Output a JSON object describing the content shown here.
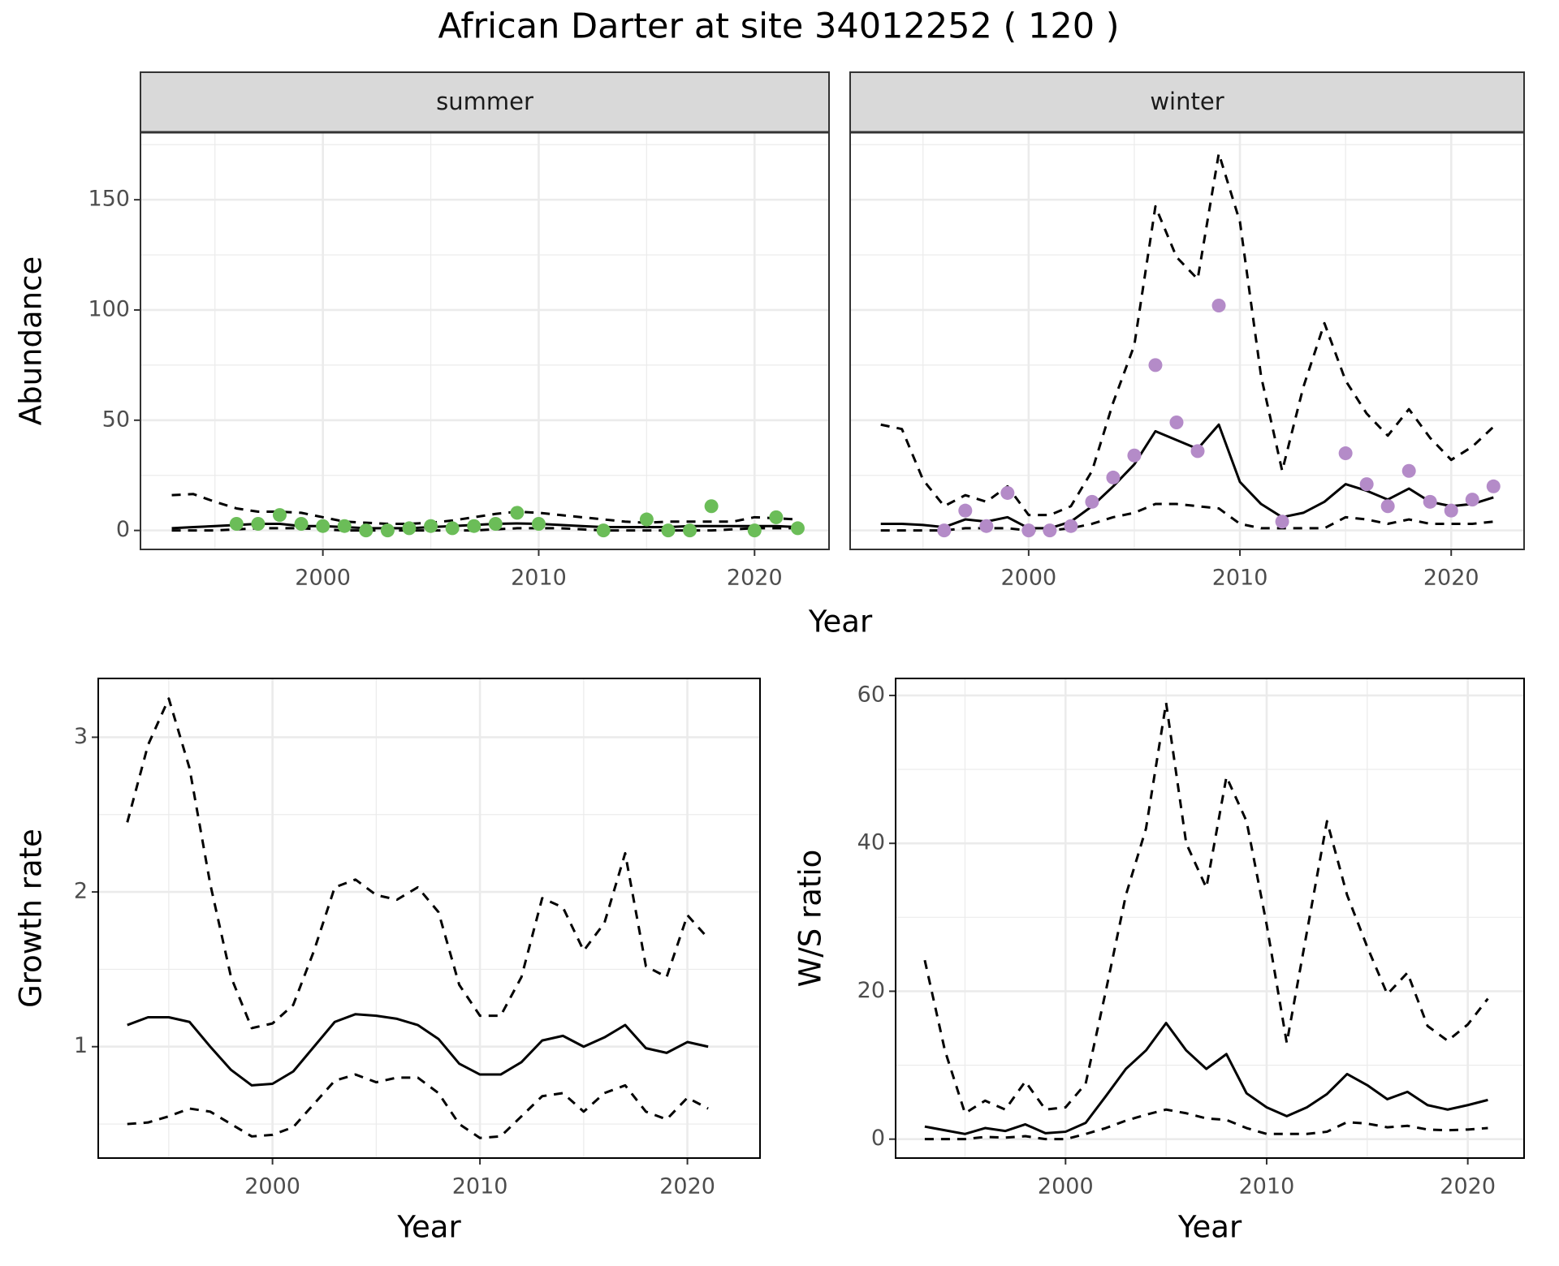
{
  "title": "African Darter at site 34012252 ( 120 )",
  "xlabel": "Year",
  "chart_data": [
    {
      "type": "line",
      "title": "summer",
      "ylabel": "Abundance",
      "xlim": [
        1991.55,
        2023.45
      ],
      "ylim": [
        -8.6,
        180.6
      ],
      "xticks": [
        2000,
        2010,
        2020
      ],
      "yticks": [
        0,
        50,
        100,
        150
      ],
      "xminor": [
        1995,
        2005,
        2015
      ],
      "yminor": [
        25,
        75,
        125,
        175
      ],
      "grid": true,
      "ytick_labels": true,
      "xtick_labels": true,
      "x": [
        1993,
        1994,
        1995,
        1996,
        1997,
        1998,
        1999,
        2000,
        2001,
        2002,
        2003,
        2004,
        2005,
        2006,
        2007,
        2008,
        2009,
        2010,
        2011,
        2012,
        2013,
        2014,
        2015,
        2016,
        2017,
        2018,
        2019,
        2020,
        2021,
        2022
      ],
      "series": [
        {
          "style": "solid",
          "color": "#000000",
          "values": [
            1,
            1.5,
            2,
            2.5,
            3,
            3,
            2,
            2,
            1.5,
            1,
            1,
            1,
            1.5,
            2,
            2.5,
            3,
            3.2,
            3,
            2.5,
            2,
            1.5,
            1.5,
            1.5,
            1.5,
            2,
            2,
            2,
            2,
            2,
            1.5
          ]
        },
        {
          "style": "dashed",
          "color": "#000000",
          "values": [
            16,
            16.5,
            13,
            10,
            8.5,
            8.5,
            8,
            6,
            4,
            3.5,
            3,
            3,
            3.5,
            4.5,
            6,
            7.5,
            8.5,
            8,
            7,
            6,
            5,
            4,
            3.5,
            4,
            4,
            4,
            4,
            6,
            5.5,
            5
          ]
        },
        {
          "style": "dashed",
          "color": "#000000",
          "values": [
            0,
            0,
            0,
            0.5,
            1,
            1,
            1,
            0.5,
            0,
            0,
            0,
            0,
            0,
            0,
            0,
            0.5,
            1,
            1,
            1,
            0.5,
            0,
            0,
            0,
            0,
            0,
            0,
            0.5,
            1,
            1,
            1
          ]
        },
        {
          "style": "points",
          "color": "#6bbd58",
          "values": [
            null,
            null,
            null,
            3,
            3,
            7,
            3,
            2,
            2,
            0,
            0,
            1,
            2,
            1,
            2,
            3,
            8,
            3,
            null,
            null,
            0,
            null,
            5,
            0,
            0,
            11,
            null,
            0,
            6,
            1
          ]
        }
      ]
    },
    {
      "type": "line",
      "title": "winter",
      "xlim": [
        1991.55,
        2023.45
      ],
      "ylim": [
        -8.6,
        180.6
      ],
      "xticks": [
        2000,
        2010,
        2020
      ],
      "yticks": [
        0,
        50,
        100,
        150
      ],
      "xminor": [
        1995,
        2005,
        2015
      ],
      "yminor": [
        25,
        75,
        125,
        175
      ],
      "grid": true,
      "ytick_labels": false,
      "xtick_labels": true,
      "x": [
        1993,
        1994,
        1995,
        1996,
        1997,
        1998,
        1999,
        2000,
        2001,
        2002,
        2003,
        2004,
        2005,
        2006,
        2007,
        2008,
        2009,
        2010,
        2011,
        2012,
        2013,
        2014,
        2015,
        2016,
        2017,
        2018,
        2019,
        2020,
        2021,
        2022
      ],
      "series": [
        {
          "style": "solid",
          "color": "#000000",
          "values": [
            3,
            3,
            2.5,
            1.5,
            5,
            4,
            6,
            1,
            1,
            4,
            11,
            20,
            30,
            45,
            41,
            37,
            48,
            22,
            12,
            6,
            8,
            13,
            21,
            18,
            14,
            19,
            13,
            11,
            12,
            15
          ]
        },
        {
          "style": "dashed",
          "color": "#000000",
          "values": [
            48,
            46,
            23,
            11,
            16,
            13,
            20,
            7,
            7,
            11,
            27,
            58,
            84,
            147,
            124,
            114,
            171,
            140,
            70,
            27,
            65,
            94,
            68,
            53,
            43,
            55,
            42,
            32,
            38,
            47
          ]
        },
        {
          "style": "dashed",
          "color": "#000000",
          "values": [
            0,
            0,
            0,
            0,
            1,
            1,
            1,
            0,
            0,
            1,
            3,
            6,
            8,
            12,
            12,
            11,
            10,
            3,
            1,
            1,
            1,
            1,
            6,
            5,
            3,
            5,
            3,
            3,
            3,
            4
          ]
        },
        {
          "style": "points",
          "color": "#b48bc8",
          "values": [
            null,
            null,
            null,
            0,
            9,
            2,
            17,
            0,
            0,
            2,
            13,
            24,
            34,
            75,
            49,
            36,
            102,
            null,
            null,
            4,
            null,
            null,
            35,
            21,
            11,
            27,
            13,
            9,
            14,
            20
          ]
        }
      ]
    },
    {
      "type": "line",
      "ylabel": "Growth rate",
      "xlabel": "Year",
      "xlim": [
        1991.6,
        2023.5
      ],
      "ylim": [
        0.28,
        3.38
      ],
      "xticks": [
        2000,
        2010,
        2020
      ],
      "yticks": [
        1,
        2,
        3
      ],
      "xminor": [
        1995,
        2005,
        2015
      ],
      "yminor": [
        0.5,
        1.5,
        2.5
      ],
      "grid": true,
      "ytick_labels": true,
      "xtick_labels": true,
      "x": [
        1993,
        1994,
        1995,
        1996,
        1997,
        1998,
        1999,
        2000,
        2001,
        2002,
        2003,
        2004,
        2005,
        2006,
        2007,
        2008,
        2009,
        2010,
        2011,
        2012,
        2013,
        2014,
        2015,
        2016,
        2017,
        2018,
        2019,
        2020,
        2021
      ],
      "series": [
        {
          "style": "solid",
          "color": "#000000",
          "values": [
            1.14,
            1.19,
            1.19,
            1.16,
            1.0,
            0.85,
            0.75,
            0.76,
            0.84,
            1.0,
            1.16,
            1.21,
            1.2,
            1.18,
            1.14,
            1.05,
            0.89,
            0.82,
            0.82,
            0.9,
            1.04,
            1.07,
            1.0,
            1.06,
            1.14,
            0.99,
            0.96,
            1.03,
            1.0
          ]
        },
        {
          "style": "dashed",
          "color": "#000000",
          "values": [
            2.45,
            2.95,
            3.25,
            2.8,
            2.05,
            1.45,
            1.12,
            1.15,
            1.27,
            1.62,
            2.03,
            2.08,
            1.98,
            1.95,
            2.03,
            1.87,
            1.4,
            1.2,
            1.2,
            1.45,
            1.96,
            1.9,
            1.62,
            1.8,
            2.25,
            1.52,
            1.45,
            1.85,
            1.7
          ]
        },
        {
          "style": "dashed",
          "color": "#000000",
          "values": [
            0.5,
            0.51,
            0.55,
            0.6,
            0.58,
            0.5,
            0.42,
            0.43,
            0.48,
            0.63,
            0.78,
            0.82,
            0.77,
            0.8,
            0.8,
            0.7,
            0.5,
            0.41,
            0.42,
            0.55,
            0.68,
            0.7,
            0.58,
            0.7,
            0.75,
            0.58,
            0.53,
            0.67,
            0.6
          ]
        }
      ]
    },
    {
      "type": "line",
      "ylabel": "W/S ratio",
      "xlabel": "Year",
      "xlim": [
        1991.55,
        2022.8
      ],
      "ylim": [
        -2.56,
        62.3
      ],
      "xticks": [
        2000,
        2010,
        2020
      ],
      "yticks": [
        0,
        20,
        40,
        60
      ],
      "xminor": [
        1995,
        2005,
        2015
      ],
      "yminor": [
        10,
        30,
        50
      ],
      "grid": true,
      "ytick_labels": true,
      "xtick_labels": true,
      "x": [
        1993,
        1994,
        1995,
        1996,
        1997,
        1998,
        1999,
        2000,
        2001,
        2002,
        2003,
        2004,
        2005,
        2006,
        2007,
        2008,
        2009,
        2010,
        2011,
        2012,
        2013,
        2014,
        2015,
        2016,
        2017,
        2018,
        2019,
        2020,
        2021
      ],
      "series": [
        {
          "style": "solid",
          "color": "#000000",
          "values": [
            1.7,
            1.2,
            0.7,
            1.5,
            1.1,
            2.0,
            0.8,
            1.0,
            2.2,
            5.8,
            9.5,
            12,
            15.7,
            12,
            9.5,
            11.5,
            6.2,
            4.3,
            3.1,
            4.3,
            6.1,
            8.8,
            7.3,
            5.4,
            6.4,
            4.6,
            4.0,
            4.6,
            5.3
          ]
        },
        {
          "style": "dashed",
          "color": "#000000",
          "values": [
            24.2,
            12,
            3.5,
            5.2,
            4,
            7.8,
            4,
            4.3,
            7.5,
            20,
            33,
            42,
            59,
            40,
            34,
            49,
            43,
            29,
            13,
            28,
            43,
            33,
            26,
            19.6,
            22.5,
            15.3,
            13.3,
            15.5,
            19
          ]
        },
        {
          "style": "dashed",
          "color": "#000000",
          "values": [
            0,
            0,
            0,
            0.3,
            0.2,
            0.4,
            0,
            0,
            0.7,
            1.5,
            2.5,
            3.3,
            4.0,
            3.5,
            2.8,
            2.6,
            1.5,
            0.7,
            0.7,
            0.7,
            1,
            2.3,
            2.1,
            1.6,
            1.8,
            1.3,
            1.2,
            1.3,
            1.5
          ]
        }
      ]
    }
  ]
}
